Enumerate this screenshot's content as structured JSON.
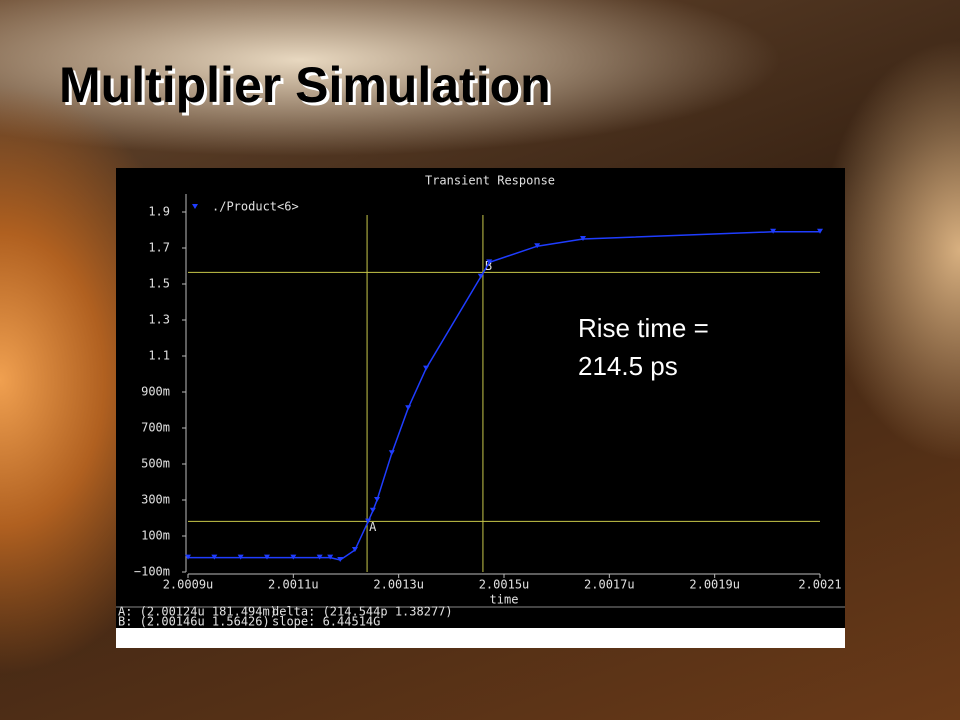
{
  "title": "Multiplier Simulation",
  "annotation": [
    "Rise time =",
    "214.5 ps"
  ],
  "chart_data": {
    "type": "line",
    "title": "Transient Response",
    "xlabel": "time",
    "x": [
      2.0009,
      2.00095,
      2.001,
      2.00105,
      2.0011,
      2.00115,
      2.00117,
      2.001189,
      2.001217,
      2.001242,
      2.001251,
      2.001259,
      2.001287,
      2.001318,
      2.001352,
      2.001456,
      2.001472,
      2.001563,
      2.00165,
      2.002011,
      2.0021
    ],
    "series": [
      {
        "name": "./Product<6>",
        "color": "#1f3dff",
        "values": [
          -0.02,
          -0.02,
          -0.02,
          -0.02,
          -0.02,
          -0.02,
          -0.02,
          -0.033,
          0.022,
          0.18,
          0.24,
          0.3,
          0.56,
          0.81,
          1.03,
          1.54,
          1.62,
          1.71,
          1.75,
          1.79,
          1.79
        ]
      }
    ],
    "xlim": [
      2.0009,
      2.0021
    ],
    "xticks": [
      {
        "value": 2.0009,
        "label": "2.0009u"
      },
      {
        "value": 2.0011,
        "label": "2.0011u"
      },
      {
        "value": 2.0013,
        "label": "2.0013u"
      },
      {
        "value": 2.0015,
        "label": "2.0015u"
      },
      {
        "value": 2.0017,
        "label": "2.0017u"
      },
      {
        "value": 2.0019,
        "label": "2.0019u"
      },
      2.0021
    ],
    "ylim": [
      -0.1,
      2.0
    ],
    "yticks": [
      {
        "value": -0.1,
        "label": "−100m"
      },
      {
        "value": 0.1,
        "label": "100m"
      },
      {
        "value": 0.3,
        "label": "300m"
      },
      {
        "value": 0.5,
        "label": "500m"
      },
      {
        "value": 0.7,
        "label": "700m"
      },
      {
        "value": 0.9,
        "label": "900m"
      },
      1.1,
      1.3,
      1.5,
      1.7,
      1.9
    ],
    "cursors": [
      {
        "label": "A",
        "x": 2.00124,
        "y": 0.181494
      },
      {
        "label": "B",
        "x": 2.00146,
        "y": 1.56426
      }
    ],
    "cursor_color": "#c8c84a",
    "readout": [
      "A: (2.00124u 181.494m)",
      "delta: (214.544p 1.38277)",
      "B: (2.00146u 1.56426)",
      "slope: 6.44514G"
    ]
  }
}
